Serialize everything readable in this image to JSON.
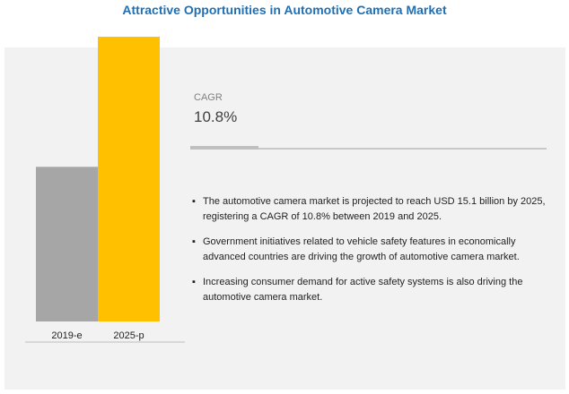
{
  "title": "Attractive Opportunities in Automotive Camera Market",
  "cagr": {
    "label": "CAGR",
    "value": "10.8%"
  },
  "bullets": [
    "The automotive camera market is projected to reach USD 15.1 billion by 2025, registering a CAGR of 10.8% between 2019 and 2025.",
    "Government initiatives related to vehicle safety features in economically advanced countries are driving the growth of automotive camera market.",
    "Increasing consumer demand for active safety systems is also driving the automotive camera market."
  ],
  "chart_data": {
    "type": "bar",
    "title": "",
    "xlabel": "",
    "ylabel": "",
    "categories": [
      "2019-e",
      "2025-p"
    ],
    "values": [
      8.2,
      15.1
    ],
    "units": "USD billion",
    "ylim": [
      0,
      15.1
    ],
    "colors": [
      "#a6a6a6",
      "#ffc000"
    ],
    "grid": false,
    "legend": "none"
  }
}
